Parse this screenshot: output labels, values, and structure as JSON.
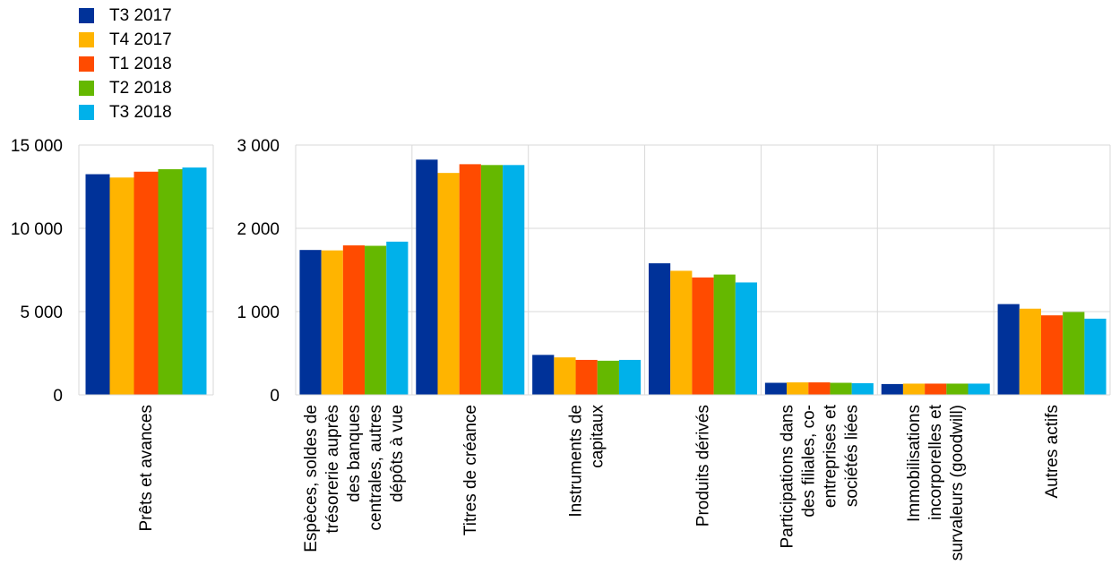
{
  "legend": {
    "items": [
      {
        "label": "T3 2017",
        "color": "#003299"
      },
      {
        "label": "T4 2017",
        "color": "#FFB400"
      },
      {
        "label": "T1 2018",
        "color": "#FF4B00"
      },
      {
        "label": "T2 2018",
        "color": "#65B800"
      },
      {
        "label": "T3 2018",
        "color": "#00B1EA"
      }
    ]
  },
  "chart_data": [
    {
      "type": "bar",
      "categories": [
        "Prêts et avances"
      ],
      "category_label_lines": [
        [
          "Prêts et avances"
        ]
      ],
      "ylim": [
        0,
        15000
      ],
      "yticks": [
        0,
        5000,
        10000,
        15000
      ],
      "ytick_labels": [
        "0",
        "5 000",
        "10 000",
        "15 000"
      ],
      "grid": true,
      "series": [
        {
          "name": "T3 2017",
          "values": [
            13250
          ]
        },
        {
          "name": "T4 2017",
          "values": [
            13050
          ]
        },
        {
          "name": "T1 2018",
          "values": [
            13400
          ]
        },
        {
          "name": "T2 2018",
          "values": [
            13550
          ]
        },
        {
          "name": "T3 2018",
          "values": [
            13650
          ]
        }
      ]
    },
    {
      "type": "bar",
      "categories": [
        "Espèces, soldes de trésorerie auprès des banques centrales, autres dépôts à vue",
        "Titres de créance",
        "Instruments de capitaux",
        "Produits dérivés",
        "Participations dans des filiales, co-entreprises et sociétés liées",
        "Immobilisations incorporelles et survaleurs (goodwill)",
        "Autres actifs"
      ],
      "category_label_lines": [
        [
          "Espèces, soldes de",
          "trésorerie auprès",
          "des banques",
          "centrales, autres",
          "dépôts à vue"
        ],
        [
          "Titres de créance"
        ],
        [
          "Instruments de",
          "capitaux"
        ],
        [
          "Produits dérivés"
        ],
        [
          "Participations dans",
          "des filiales, co-",
          "entreprises et",
          "sociétés liées"
        ],
        [
          "Immobilisations",
          "incorporelles et",
          "survaleurs (goodwill)"
        ],
        [
          "Autres actifs"
        ]
      ],
      "ylim": [
        0,
        3000
      ],
      "yticks": [
        0,
        1000,
        2000,
        3000
      ],
      "ytick_labels": [
        "0",
        "1 000",
        "2 000",
        "3 000"
      ],
      "grid": true,
      "series": [
        {
          "name": "T3 2017",
          "values": [
            1740,
            2825,
            480,
            1580,
            145,
            130,
            1090
          ]
        },
        {
          "name": "T4 2017",
          "values": [
            1735,
            2665,
            450,
            1490,
            150,
            135,
            1035
          ]
        },
        {
          "name": "T1 2018",
          "values": [
            1795,
            2770,
            420,
            1410,
            150,
            135,
            955
          ]
        },
        {
          "name": "T2 2018",
          "values": [
            1790,
            2760,
            410,
            1445,
            145,
            135,
            995
          ]
        },
        {
          "name": "T3 2018",
          "values": [
            1840,
            2760,
            420,
            1350,
            140,
            135,
            915
          ]
        }
      ]
    }
  ]
}
